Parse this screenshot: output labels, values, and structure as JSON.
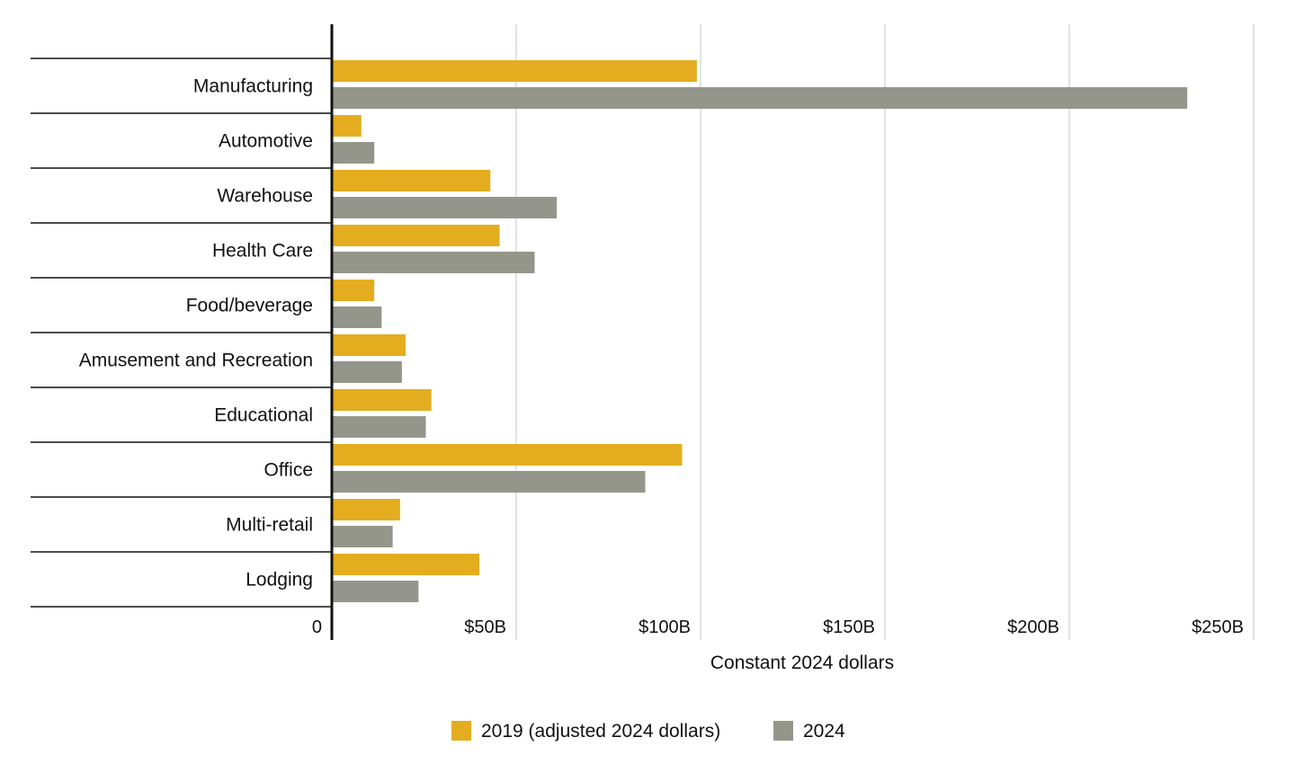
{
  "chart_data": {
    "type": "bar",
    "orientation": "horizontal",
    "title": "",
    "xlabel": "Constant 2024 dollars",
    "ylabel": "",
    "xlim": [
      0,
      250
    ],
    "x_ticks": [
      {
        "value": 0,
        "label": "0"
      },
      {
        "value": 50,
        "label": "$50B"
      },
      {
        "value": 100,
        "label": "$100B"
      },
      {
        "value": 150,
        "label": "$150B"
      },
      {
        "value": 200,
        "label": "$200B"
      },
      {
        "value": 250,
        "label": "$250B"
      }
    ],
    "grid": true,
    "legend_position": "bottom",
    "categories": [
      "Manufacturing",
      "Automotive",
      "Warehouse",
      "Health Care",
      "Food/beverage",
      "Amusement and Recreation",
      "Educational",
      "Office",
      "Multi-retail",
      "Lodging"
    ],
    "series": [
      {
        "name": "2019 (adjusted 2024 dollars)",
        "color": "#E3AD1F",
        "values": [
          99,
          8,
          43,
          45.5,
          11.5,
          20,
          27,
          95,
          18.5,
          40
        ]
      },
      {
        "name": "2024",
        "color": "#95968B",
        "values": [
          232,
          11.5,
          61,
          55,
          13.5,
          19,
          25.5,
          85,
          16.5,
          23.5
        ]
      }
    ]
  }
}
